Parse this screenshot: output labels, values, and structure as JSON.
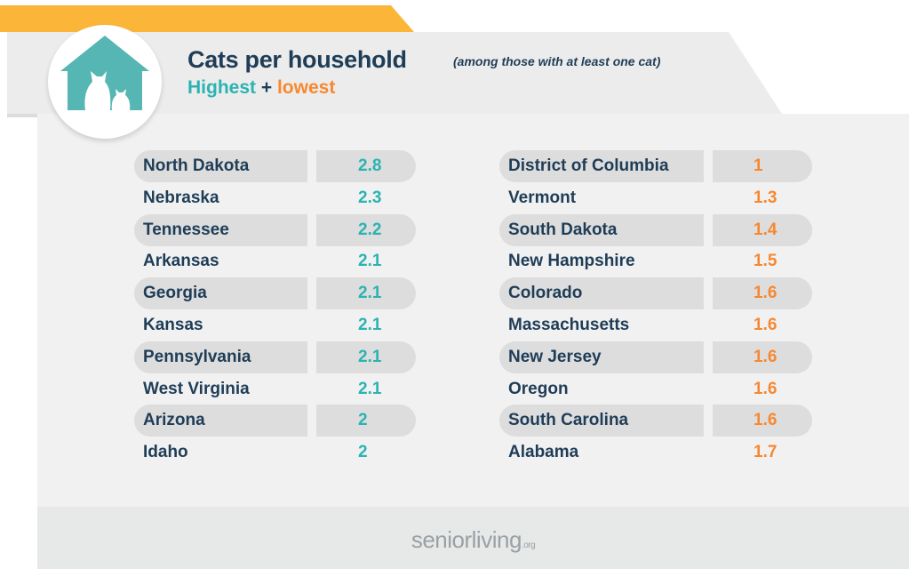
{
  "header": {
    "title": "Cats per household",
    "subtitle": "(among those with at least one cat)",
    "highest_label": "Highest",
    "plus_label": "+",
    "lowest_label": "lowest"
  },
  "colors": {
    "highest": "#2bb3b2",
    "lowest": "#f7882f",
    "text": "#1f3d57",
    "banner": "#fbb63a"
  },
  "icons": {
    "header": "house-with-cats-icon"
  },
  "footer": {
    "brand": "seniorliving",
    "brand_suffix": ".org"
  },
  "chart_data": [
    {
      "type": "table",
      "group": "Highest",
      "categories": [
        "North Dakota",
        "Nebraska",
        "Tennessee",
        "Arkansas",
        "Georgia",
        "Kansas",
        "Pennsylvania",
        "West Virginia",
        "Arizona",
        "Idaho"
      ],
      "values": [
        2.8,
        2.3,
        2.2,
        2.1,
        2.1,
        2.1,
        2.1,
        2.1,
        2,
        2
      ],
      "value_labels": [
        "2.8",
        "2.3",
        "2.2",
        "2.1",
        "2.1",
        "2.1",
        "2.1",
        "2.1",
        "2",
        "2"
      ]
    },
    {
      "type": "table",
      "group": "lowest",
      "categories": [
        "District of Columbia",
        "Vermont",
        "South Dakota",
        "New Hampshire",
        "Colorado",
        "Massachusetts",
        "New Jersey",
        "Oregon",
        "South Carolina",
        "Alabama"
      ],
      "values": [
        1,
        1.3,
        1.4,
        1.5,
        1.6,
        1.6,
        1.6,
        1.6,
        1.6,
        1.7
      ],
      "value_labels": [
        "1",
        "1.3",
        "1.4",
        "1.5",
        "1.6",
        "1.6",
        "1.6",
        "1.6",
        "1.6",
        "1.7"
      ]
    }
  ]
}
